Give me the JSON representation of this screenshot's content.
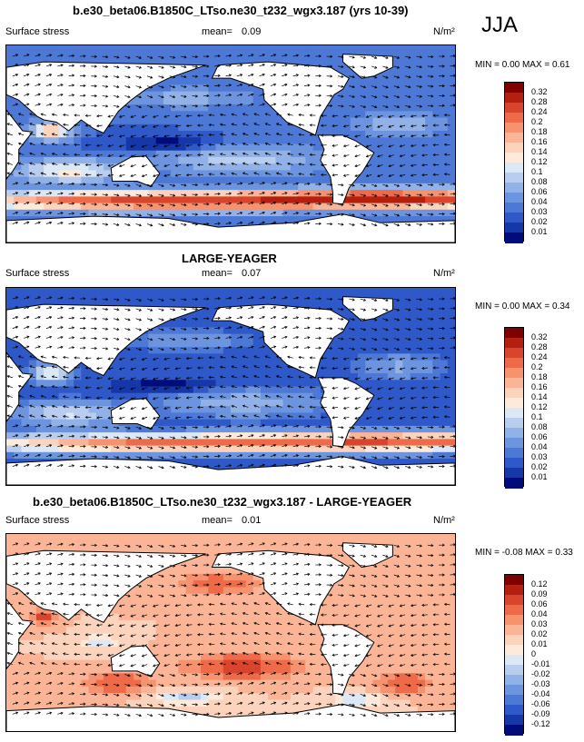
{
  "header": {
    "title_top": "b.e30_beta06.B1850C_LTso.ne30_t232_wgx3.187 (yrs 10-39)",
    "season": "JJA"
  },
  "panels": [
    {
      "title": "b.e30_beta06.B1850C_LTso.ne30_t232_wgx3.187 (yrs 10-39)",
      "field_label": "Surface stress",
      "mean_label": "mean=",
      "mean_value": "0.09",
      "units": "N/m²",
      "minmax": "MIN =  0.00 MAX =  0.61"
    },
    {
      "title": "LARGE-YEAGER",
      "field_label": "Surface stress",
      "mean_label": "mean=",
      "mean_value": "0.07",
      "units": "N/m²",
      "minmax": "MIN =  0.00 MAX =  0.34"
    },
    {
      "title": "b.e30_beta06.B1850C_LTso.ne30_t232_wgx3.187 - LARGE-YEAGER",
      "field_label": "Surface stress",
      "mean_label": "mean=",
      "mean_value": "0.01",
      "units": "N/m²",
      "minmax": "MIN = -0.08 MAX =  0.33"
    }
  ],
  "colorbars": {
    "stress": {
      "labels": [
        "0.32",
        "0.28",
        "0.24",
        "0.2",
        "0.18",
        "0.16",
        "0.14",
        "0.12",
        "0.1",
        "0.08",
        "0.06",
        "0.04",
        "0.03",
        "0.02",
        "0.01"
      ],
      "colors": [
        "#7f0000",
        "#b3200f",
        "#d8452c",
        "#ee6a48",
        "#f7926f",
        "#fbb596",
        "#fcd3bc",
        "#fdeadb",
        "#dde8f6",
        "#b9cdee",
        "#92b1e6",
        "#6d94de",
        "#4d78d6",
        "#2f59c8",
        "#1637a8",
        "#000c7a"
      ]
    },
    "diff": {
      "labels": [
        "0.12",
        "0.09",
        "0.06",
        "0.04",
        "0.03",
        "0.02",
        "0.01",
        "0",
        "-0.01",
        "-0.02",
        "-0.03",
        "-0.04",
        "-0.06",
        "-0.09",
        "-0.12"
      ],
      "colors": [
        "#7f0000",
        "#b3200f",
        "#d8452c",
        "#ee6a48",
        "#f7926f",
        "#fbb596",
        "#fcd3bc",
        "#fdeadb",
        "#dde8f6",
        "#b9cdee",
        "#92b1e6",
        "#6d94de",
        "#4d78d6",
        "#2f59c8",
        "#1637a8",
        "#000c7a"
      ]
    }
  },
  "chart_data": [
    {
      "type": "heatmap",
      "title": "b.e30_beta06.B1850C_LTso.ne30_t232_wgx3.187 (yrs 10-39)",
      "variable": "Surface stress",
      "units": "N/m²",
      "mean": 0.09,
      "min": 0.0,
      "max": 0.61,
      "season": "JJA",
      "contour_levels": [
        0.01,
        0.02,
        0.03,
        0.04,
        0.06,
        0.08,
        0.1,
        0.12,
        0.14,
        0.16,
        0.18,
        0.2,
        0.24,
        0.28,
        0.32
      ]
    },
    {
      "type": "heatmap",
      "title": "LARGE-YEAGER",
      "variable": "Surface stress",
      "units": "N/m²",
      "mean": 0.07,
      "min": 0.0,
      "max": 0.34,
      "season": "JJA",
      "contour_levels": [
        0.01,
        0.02,
        0.03,
        0.04,
        0.06,
        0.08,
        0.1,
        0.12,
        0.14,
        0.16,
        0.18,
        0.2,
        0.24,
        0.28,
        0.32
      ]
    },
    {
      "type": "heatmap",
      "title": "b.e30_beta06.B1850C_LTso.ne30_t232_wgx3.187 - LARGE-YEAGER",
      "variable": "Surface stress",
      "units": "N/m²",
      "mean": 0.01,
      "min": -0.08,
      "max": 0.33,
      "season": "JJA",
      "contour_levels": [
        -0.12,
        -0.09,
        -0.06,
        -0.04,
        -0.03,
        -0.02,
        -0.01,
        0,
        0.01,
        0.02,
        0.03,
        0.04,
        0.06,
        0.09,
        0.12
      ]
    }
  ]
}
